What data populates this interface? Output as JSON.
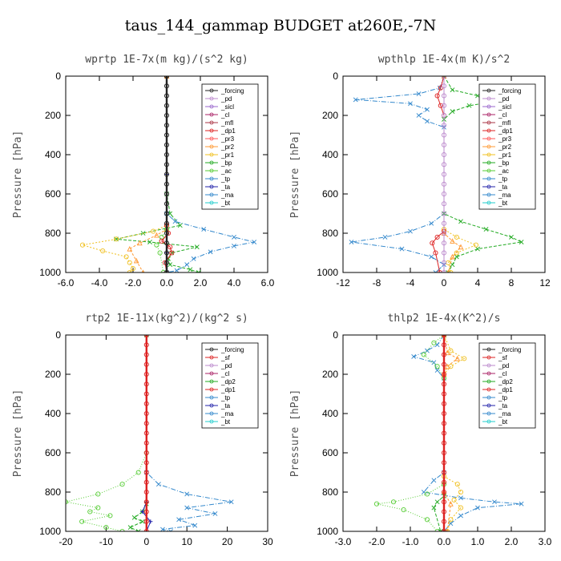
{
  "figure_title": "taus_144_gammap  BUDGET at260E,-7N",
  "chart_data": [
    {
      "type": "line",
      "title": "wprtp  1E-7x(m kg)/(s^2 kg)",
      "ylabel": "Pressure [hPa]",
      "xlim": [
        -6,
        6
      ],
      "ylim": [
        1000,
        0
      ],
      "xticks": [
        -6,
        -4,
        -2,
        0,
        2,
        4,
        6
      ],
      "xtick_labels": [
        "-6.0",
        "-4.0",
        "-2.0",
        "0.0",
        "2.0",
        "4.0",
        "6.0"
      ],
      "yticks": [
        0,
        200,
        400,
        600,
        800,
        1000
      ],
      "ytick_labels": [
        "0",
        "200",
        "400",
        "600",
        "800",
        "1000"
      ],
      "legend_position": "top-right",
      "legend": [
        "_forcing",
        "_pd",
        "_sicl",
        "_cl",
        "_mfl",
        "_dp1",
        "_pr3",
        "_pr2",
        "_pr1",
        "_bp",
        "_ac",
        "_tp",
        "_ta",
        "_ma",
        "_bt"
      ],
      "series": [
        {
          "name": "_bp",
          "color": "#22aa22",
          "marker": "x",
          "dash": "4,2",
          "x": [
            0,
            0,
            0.2,
            0.8,
            -1.4,
            -3.0,
            -1.0,
            1.8,
            0.3,
            0.1,
            0.2,
            1.4,
            1.9
          ],
          "y": [
            0,
            600,
            700,
            760,
            800,
            830,
            845,
            870,
            900,
            930,
            960,
            985,
            1000
          ]
        },
        {
          "name": "_tp",
          "color": "#3388cc",
          "marker": "x",
          "dash": "6,2,1,2",
          "x": [
            0,
            0,
            0.5,
            2.2,
            4.0,
            5.2,
            4.0,
            2.6,
            1.6,
            1.2,
            0.6,
            0
          ],
          "y": [
            0,
            700,
            740,
            780,
            820,
            845,
            865,
            895,
            930,
            960,
            990,
            1000
          ]
        },
        {
          "name": "_pr1",
          "color": "#f0c020",
          "marker": "o",
          "dash": "2,2",
          "x": [
            0,
            0,
            -0.8,
            -3.0,
            -5.0,
            -3.8,
            -2.4,
            -2.2,
            -2.0,
            -2.2
          ],
          "y": [
            0,
            760,
            790,
            830,
            860,
            890,
            920,
            950,
            980,
            1000
          ]
        },
        {
          "name": "_pr2",
          "color": "#ff9933",
          "marker": "^",
          "dash": "3,2",
          "x": [
            0,
            0,
            -0.6,
            -1.6,
            -2.2,
            -1.8,
            -1.4
          ],
          "y": [
            0,
            780,
            810,
            850,
            880,
            940,
            1000
          ]
        },
        {
          "name": "_ac",
          "color": "#55cc33",
          "marker": "o",
          "dash": "1,2",
          "x": [
            0,
            0,
            -0.3,
            -0.6,
            -0.4,
            -0.2
          ],
          "y": [
            0,
            780,
            820,
            860,
            900,
            1000
          ]
        },
        {
          "name": "_dp1",
          "color": "#dd2222",
          "marker": "o",
          "dash": "",
          "x": [
            0,
            0,
            0.1,
            -0.3,
            0.2,
            0.3,
            -0.1,
            0
          ],
          "y": [
            0,
            760,
            800,
            840,
            870,
            900,
            950,
            1000
          ]
        },
        {
          "name": "_ta",
          "color": "#2222aa",
          "marker": "+",
          "dash": "",
          "x": [
            0,
            0,
            0,
            0
          ],
          "y": [
            0,
            500,
            900,
            1000
          ]
        },
        {
          "name": "_forcing",
          "color": "#222222",
          "marker": "o",
          "dash": "",
          "x": [
            0,
            0,
            0,
            0,
            0,
            0,
            0,
            0,
            0,
            0,
            0,
            0,
            0,
            0,
            0,
            0,
            0,
            0,
            0,
            0,
            0
          ],
          "y": [
            0,
            50,
            100,
            150,
            200,
            250,
            300,
            350,
            400,
            450,
            500,
            550,
            600,
            650,
            700,
            750,
            800,
            850,
            900,
            950,
            1000
          ]
        }
      ]
    },
    {
      "type": "line",
      "title": "wpthlp  1E-4x(m K)/s^2",
      "ylabel": "Pressure [hPa]",
      "xlim": [
        -12,
        12
      ],
      "ylim": [
        1000,
        0
      ],
      "xticks": [
        -12,
        -8,
        -4,
        0,
        4,
        8,
        12
      ],
      "xtick_labels": [
        "-12",
        "-8",
        "-4",
        "0",
        "4",
        "8",
        "12"
      ],
      "yticks": [
        0,
        200,
        400,
        600,
        800,
        1000
      ],
      "ytick_labels": [
        "0",
        "200",
        "400",
        "600",
        "800",
        "1000"
      ],
      "legend_position": "top-right",
      "legend": [
        "_forcing",
        "_pd",
        "_sicl",
        "_cl",
        "_mfl",
        "_dp1",
        "_pr3",
        "_pr2",
        "_pr1",
        "_bp",
        "_ac",
        "_tp",
        "_ta",
        "_ma",
        "_bt"
      ],
      "series": [
        {
          "name": "_tp",
          "color": "#3388cc",
          "marker": "x",
          "dash": "6,2,1,2",
          "x": [
            0,
            -0.5,
            -3.0,
            -10.5,
            -4.0,
            -2.0,
            -3.0,
            -2.0,
            0,
            0,
            -1.5,
            -4.0,
            -7.0,
            -11.0,
            -5.0,
            -1.5,
            0,
            -1.0
          ],
          "y": [
            0,
            60,
            90,
            120,
            140,
            170,
            200,
            230,
            260,
            700,
            750,
            790,
            820,
            845,
            880,
            920,
            960,
            1000
          ]
        },
        {
          "name": "_bp",
          "color": "#22aa22",
          "marker": "x",
          "dash": "4,2",
          "x": [
            0,
            1.0,
            4.0,
            7.5,
            3.0,
            1.0,
            0,
            0,
            2.0,
            5.0,
            8.0,
            9.2,
            4.0,
            1.5,
            1.0,
            0.5
          ],
          "y": [
            0,
            70,
            100,
            120,
            150,
            180,
            220,
            700,
            740,
            780,
            820,
            845,
            880,
            920,
            960,
            1000
          ]
        },
        {
          "name": "_pr1",
          "color": "#f0c020",
          "marker": "o",
          "dash": "2,2",
          "x": [
            0,
            0,
            1.5,
            3.8,
            1.5,
            0.5,
            0.8
          ],
          "y": [
            0,
            780,
            820,
            860,
            900,
            950,
            1000
          ]
        },
        {
          "name": "_pr2",
          "color": "#ff9933",
          "marker": "^",
          "dash": "3,2",
          "x": [
            0,
            0,
            1.0,
            2.0,
            1.0,
            0.5
          ],
          "y": [
            0,
            800,
            840,
            870,
            920,
            1000
          ]
        },
        {
          "name": "_dp1",
          "color": "#dd2222",
          "marker": "o",
          "dash": "",
          "x": [
            0,
            -0.4,
            -0.8,
            -0.4,
            0,
            0,
            -0.8,
            -1.4,
            -1.0,
            -0.5
          ],
          "y": [
            0,
            60,
            100,
            150,
            200,
            790,
            820,
            850,
            900,
            1000
          ]
        },
        {
          "name": "_pd",
          "color": "#bb88cc",
          "marker": "o",
          "dash": "",
          "x": [
            0,
            0,
            0,
            0,
            0,
            0,
            0,
            0,
            0,
            0,
            0,
            0,
            0,
            0,
            0,
            0,
            0,
            0,
            0,
            0,
            0
          ],
          "y": [
            0,
            50,
            100,
            150,
            200,
            250,
            300,
            350,
            400,
            450,
            500,
            550,
            600,
            650,
            700,
            750,
            800,
            850,
            900,
            950,
            1000
          ]
        }
      ]
    },
    {
      "type": "line",
      "title": "rtp2  1E-11x(kg^2)/(kg^2 s)",
      "ylabel": "Pressure [hPa]",
      "xlim": [
        -20,
        30
      ],
      "ylim": [
        1000,
        0
      ],
      "xticks": [
        -20,
        -10,
        0,
        10,
        20,
        30
      ],
      "xtick_labels": [
        "-20",
        "-10",
        "0",
        "10",
        "20",
        "30"
      ],
      "yticks": [
        0,
        200,
        400,
        600,
        800,
        1000
      ],
      "ytick_labels": [
        "0",
        "200",
        "400",
        "600",
        "800",
        "1000"
      ],
      "legend_position": "top-right",
      "legend": [
        "_forcing",
        "_sf",
        "_pd",
        "_cl",
        "_dp2",
        "_dp1",
        "_tp",
        "_ta",
        "_ma",
        "_bt"
      ],
      "series": [
        {
          "name": "_dp1",
          "color": "#55cc33",
          "marker": "o",
          "dash": "1,2",
          "x": [
            0,
            0,
            -2.0,
            -6.0,
            -12.0,
            -20.0,
            -12.0,
            -14.0,
            -9.0,
            -16.0,
            -10.0,
            -6.0
          ],
          "y": [
            0,
            600,
            700,
            760,
            810,
            850,
            880,
            900,
            920,
            950,
            980,
            1000
          ]
        },
        {
          "name": "_tp",
          "color": "#3388cc",
          "marker": "x",
          "dash": "6,2,1,2",
          "x": [
            0,
            0,
            3.0,
            10.0,
            21.0,
            10.0,
            17.0,
            8.0,
            12.0,
            4.0,
            6.0
          ],
          "y": [
            0,
            700,
            760,
            810,
            850,
            880,
            910,
            940,
            970,
            990,
            1000
          ]
        },
        {
          "name": "_dp2",
          "color": "#22aa22",
          "marker": "x",
          "dash": "4,2",
          "x": [
            0,
            0,
            -1.0,
            -3.0,
            -1.0,
            -4.0,
            -2.0
          ],
          "y": [
            0,
            860,
            900,
            930,
            950,
            980,
            1000
          ]
        },
        {
          "name": "_ta",
          "color": "#2222aa",
          "marker": "+",
          "dash": "",
          "x": [
            0,
            0,
            -1.0,
            1.0,
            0
          ],
          "y": [
            0,
            850,
            900,
            950,
            1000
          ]
        },
        {
          "name": "_forcing",
          "color": "#dd2222",
          "marker": "o",
          "dash": "",
          "x": [
            0,
            0,
            0,
            0,
            0,
            0,
            0,
            0,
            0,
            0,
            0,
            0,
            0,
            0,
            0,
            0,
            0,
            0,
            0,
            0,
            0
          ],
          "y": [
            0,
            50,
            100,
            150,
            200,
            250,
            300,
            350,
            400,
            450,
            500,
            550,
            600,
            650,
            700,
            750,
            800,
            850,
            900,
            950,
            1000
          ]
        }
      ]
    },
    {
      "type": "line",
      "title": "thlp2  1E-4x(K^2)/s",
      "ylabel": "Pressure [hPa]",
      "xlim": [
        -3,
        3
      ],
      "ylim": [
        1000,
        0
      ],
      "xticks": [
        -3,
        -2,
        -1,
        0,
        1,
        2,
        3
      ],
      "xtick_labels": [
        "-3.0",
        "-2.0",
        "-1.0",
        "0.0",
        "1.0",
        "2.0",
        "3.0"
      ],
      "yticks": [
        0,
        200,
        400,
        600,
        800,
        1000
      ],
      "ytick_labels": [
        "0",
        "200",
        "400",
        "600",
        "800",
        "1000"
      ],
      "legend_position": "top-right",
      "legend": [
        "_forcing",
        "_sf",
        "_pd",
        "_cl",
        "_dp2",
        "_dp1",
        "_tp",
        "_ta",
        "_ma",
        "_bt"
      ],
      "series": [
        {
          "name": "_tp",
          "color": "#3388cc",
          "marker": "x",
          "dash": "6,2,1,2",
          "x": [
            0,
            -0.2,
            -0.5,
            -0.9,
            -0.3,
            -0.2,
            0,
            0,
            -0.3,
            -0.6,
            0.5,
            1.5,
            2.3,
            1.0,
            0.5,
            0.2,
            0
          ],
          "y": [
            0,
            50,
            80,
            110,
            140,
            180,
            220,
            700,
            740,
            800,
            830,
            850,
            860,
            880,
            920,
            960,
            1000
          ]
        },
        {
          "name": "_dp1",
          "color": "#55cc33",
          "marker": "o",
          "dash": "1,2",
          "x": [
            0,
            -0.3,
            -0.6,
            -0.2,
            0,
            0,
            -0.5,
            -1.5,
            -2.0,
            -1.2,
            -0.5,
            -0.2
          ],
          "y": [
            0,
            40,
            100,
            160,
            220,
            760,
            810,
            850,
            860,
            890,
            940,
            1000
          ]
        },
        {
          "name": "_cl",
          "color": "#f0c020",
          "marker": "o",
          "dash": "2,2",
          "x": [
            0,
            0.2,
            0.6,
            0.2,
            0,
            0,
            0.4,
            0.5,
            0.3,
            0.5,
            0.2,
            0.1
          ],
          "y": [
            0,
            80,
            120,
            160,
            200,
            720,
            760,
            800,
            840,
            880,
            940,
            1000
          ]
        },
        {
          "name": "_pd",
          "color": "#ff9933",
          "marker": "^",
          "dash": "3,2",
          "x": [
            0,
            0.1,
            0.4,
            0.1,
            0,
            0,
            0.2,
            0.1
          ],
          "y": [
            0,
            90,
            120,
            160,
            200,
            800,
            860,
            1000
          ]
        },
        {
          "name": "_dp2",
          "color": "#22aa22",
          "marker": "x",
          "dash": "4,2",
          "x": [
            0,
            0,
            -0.2,
            -0.3,
            -0.1
          ],
          "y": [
            0,
            820,
            850,
            880,
            1000
          ]
        },
        {
          "name": "_forcing",
          "color": "#dd2222",
          "marker": "o",
          "dash": "",
          "x": [
            0,
            0,
            0,
            0,
            0,
            0,
            0,
            0,
            0,
            0,
            0,
            0,
            0,
            0,
            0,
            0,
            0,
            0,
            0,
            0,
            0
          ],
          "y": [
            0,
            50,
            100,
            150,
            200,
            250,
            300,
            350,
            400,
            450,
            500,
            550,
            600,
            650,
            700,
            750,
            800,
            850,
            900,
            950,
            1000
          ]
        }
      ]
    }
  ]
}
